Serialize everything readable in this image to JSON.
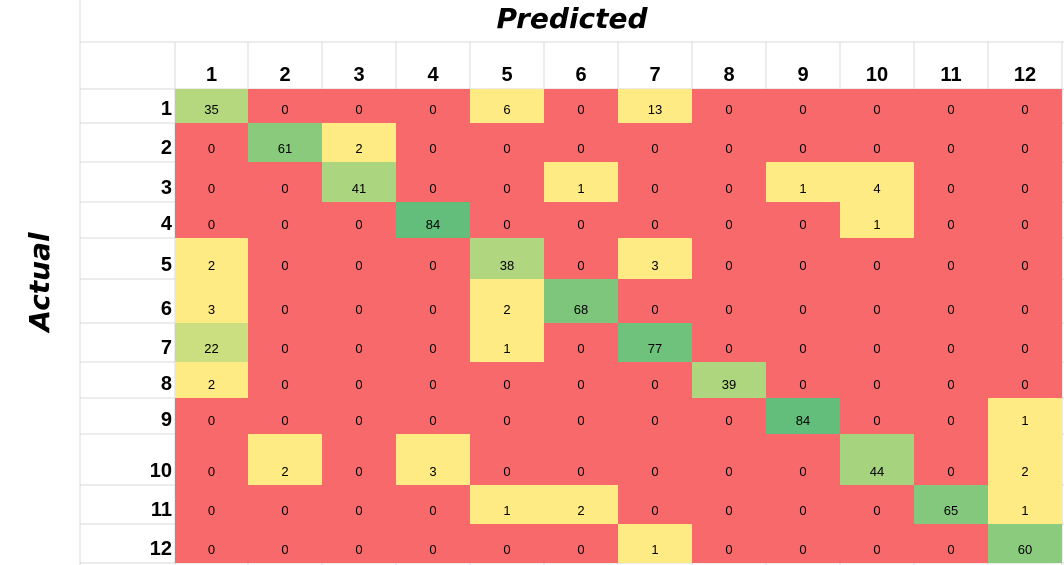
{
  "chart_data": {
    "type": "heatmap",
    "title": "Predicted",
    "xlabel": "Predicted",
    "ylabel": "Actual",
    "x_categories": [
      "1",
      "2",
      "3",
      "4",
      "5",
      "6",
      "7",
      "8",
      "9",
      "10",
      "11",
      "12"
    ],
    "y_categories": [
      "1",
      "2",
      "3",
      "4",
      "5",
      "6",
      "7",
      "8",
      "9",
      "10",
      "11",
      "12"
    ],
    "matrix": [
      [
        35,
        0,
        0,
        0,
        6,
        0,
        13,
        0,
        0,
        0,
        0,
        0
      ],
      [
        0,
        61,
        2,
        0,
        0,
        0,
        0,
        0,
        0,
        0,
        0,
        0
      ],
      [
        0,
        0,
        41,
        0,
        0,
        1,
        0,
        0,
        1,
        4,
        0,
        0
      ],
      [
        0,
        0,
        0,
        84,
        0,
        0,
        0,
        0,
        0,
        1,
        0,
        0
      ],
      [
        2,
        0,
        0,
        0,
        38,
        0,
        3,
        0,
        0,
        0,
        0,
        0
      ],
      [
        3,
        0,
        0,
        0,
        2,
        68,
        0,
        0,
        0,
        0,
        0,
        0
      ],
      [
        22,
        0,
        0,
        0,
        1,
        0,
        77,
        0,
        0,
        0,
        0,
        0
      ],
      [
        2,
        0,
        0,
        0,
        0,
        0,
        0,
        39,
        0,
        0,
        0,
        0
      ],
      [
        0,
        0,
        0,
        0,
        0,
        0,
        0,
        0,
        84,
        0,
        0,
        1
      ],
      [
        0,
        2,
        0,
        3,
        0,
        0,
        0,
        0,
        0,
        44,
        0,
        2
      ],
      [
        0,
        0,
        0,
        0,
        1,
        2,
        0,
        0,
        0,
        0,
        65,
        1
      ],
      [
        0,
        0,
        0,
        0,
        0,
        0,
        1,
        0,
        0,
        0,
        0,
        60
      ]
    ],
    "colors": {
      "zero": "#f8696b",
      "low": "#ffeb84",
      "high": "#63be7b"
    }
  }
}
